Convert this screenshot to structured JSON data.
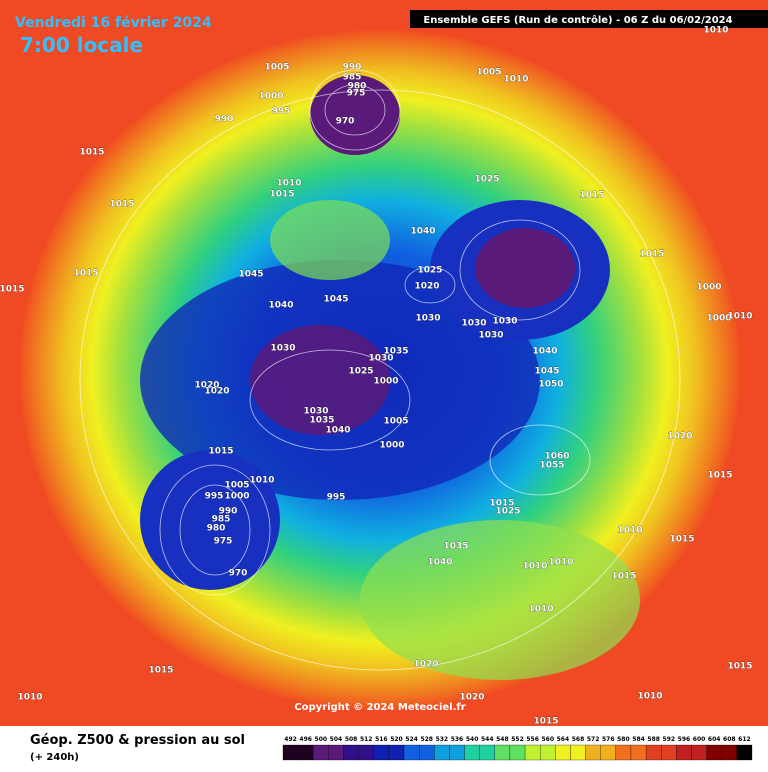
{
  "header": {
    "date": "Vendredi 16 février 2024",
    "time": "7:00 locale",
    "model": "Ensemble GEFS  (Run de contrôle)  -  06 Z du 06/02/2024"
  },
  "copyright": "Copyright © 2024 Meteociel.fr",
  "legend": {
    "title": "Géop. Z500 & pression au sol",
    "lead": "(+ 240h)",
    "scale": [
      492,
      496,
      500,
      504,
      508,
      512,
      516,
      520,
      524,
      528,
      532,
      536,
      540,
      544,
      548,
      552,
      556,
      560,
      564,
      568,
      572,
      576,
      580,
      584,
      588,
      592,
      596,
      600,
      604,
      608,
      612
    ]
  },
  "pressure_labels": [
    990,
    985,
    980,
    975,
    970,
    1005,
    1000,
    995,
    990,
    1015,
    1010,
    1015,
    1015,
    1015,
    1015,
    1005,
    1010,
    1025,
    1015,
    1040,
    1015,
    1025,
    1020,
    1045,
    1045,
    1040,
    1030,
    1030,
    1030,
    1030,
    1000,
    1000,
    1010,
    1030,
    1035,
    1030,
    1025,
    1000,
    1040,
    1045,
    1050,
    1020,
    1020,
    1030,
    1035,
    1040,
    1005,
    1000,
    1015,
    1005,
    1010,
    995,
    1000,
    995,
    990,
    985,
    980,
    975,
    970,
    1060,
    1055,
    1020,
    1015,
    1015,
    1025,
    1010,
    1015,
    1035,
    1040,
    1010,
    1010,
    1015,
    1010,
    1015,
    1020,
    1015,
    1010,
    1020,
    1010,
    1015,
    1010
  ]
}
